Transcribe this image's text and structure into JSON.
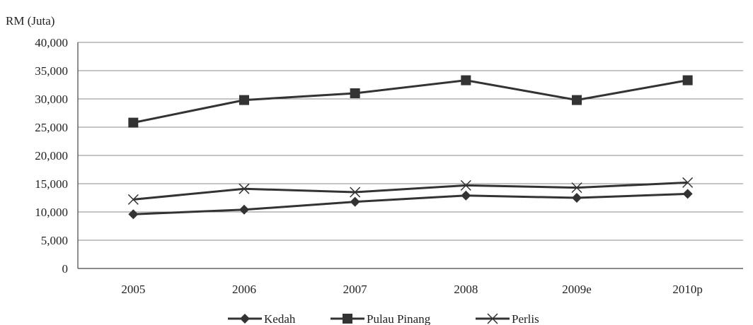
{
  "chart_data": {
    "type": "line",
    "title": "",
    "ylabel": "RM (Juta)",
    "xlabel": "",
    "categories": [
      "2005",
      "2006",
      "2007",
      "2008",
      "2009e",
      "2010p"
    ],
    "ylim": [
      0,
      40000
    ],
    "yticks": [
      0,
      5000,
      10000,
      15000,
      20000,
      25000,
      30000,
      35000,
      40000
    ],
    "ytick_labels": [
      "0",
      "5,000",
      "10,000",
      "15,000",
      "20,000",
      "25,000",
      "30,000",
      "35,000",
      "40,000"
    ],
    "grid": true,
    "legend_position": "bottom",
    "series": [
      {
        "name": "Kedah",
        "marker": "diamond",
        "values": [
          9600,
          10400,
          11800,
          12900,
          12500,
          13200
        ]
      },
      {
        "name": "Pulau Pinang",
        "marker": "square",
        "values": [
          25800,
          29800,
          31000,
          33300,
          29800,
          33300
        ]
      },
      {
        "name": "Perlis",
        "marker": "cross",
        "values": [
          12200,
          14100,
          13500,
          14700,
          14300,
          15200
        ]
      }
    ],
    "colors": {
      "line": "#333333",
      "grid": "#888888"
    }
  }
}
